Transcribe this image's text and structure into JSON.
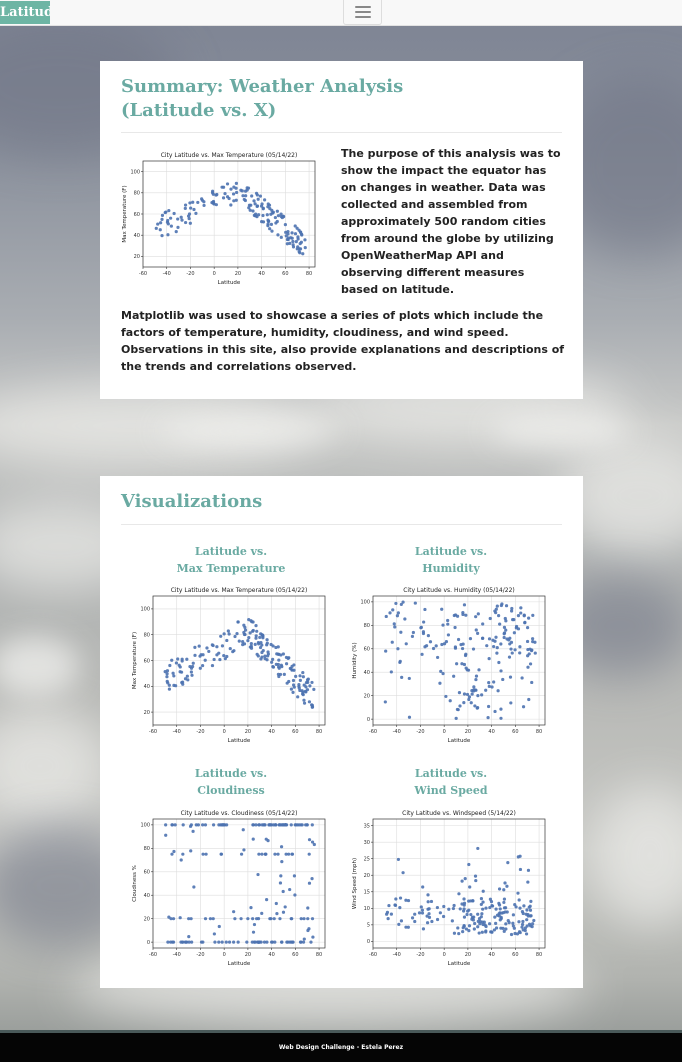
{
  "nav": {
    "brand": "Latitude",
    "menu_icon": "hamburger-icon"
  },
  "summary": {
    "title_line1": "Summary: Weather Analysis",
    "title_line2": "(Latitude vs. X)",
    "para1": "The purpose of this analysis was to show the impact the equator has on changes in weather. Data was collected and assembled from approximately 500 random cities from around the globe by utilizing OpenWeatherMap API and observing different measures based on latitude.",
    "para2": "Matplotlib was used to showcase a series of plots which include the factors of temperature, humidity, cloudiness, and wind speed. Observations in this site, also provide explanations and descriptions of the trends and correlations observed."
  },
  "visualizations": {
    "title": "Visualizations",
    "items": [
      {
        "line1": "Latitude vs.",
        "line2": "Max Temperature"
      },
      {
        "line1": "Latitude vs.",
        "line2": "Humidity"
      },
      {
        "line1": "Latitude vs.",
        "line2": "Cloudiness"
      },
      {
        "line1": "Latitude vs.",
        "line2": "Wind Speed"
      }
    ]
  },
  "footer": {
    "text": "Web Design Challenge - Estela Perez"
  },
  "colors": {
    "accent": "#6aaaa2",
    "brand": "#6db5a4",
    "marker": "#4c72b0"
  },
  "chart_data": [
    {
      "id": "summary-temp",
      "type": "scatter",
      "title": "City Latitude vs. Max Temperature (05/14/22)",
      "xlabel": "Latitude",
      "ylabel": "Max Temperature (F)",
      "xlim": [
        -60,
        85
      ],
      "ylim": [
        10,
        110
      ],
      "xticks": [
        -60,
        -40,
        -20,
        0,
        20,
        40,
        60,
        80
      ],
      "yticks": [
        20,
        40,
        60,
        80,
        100
      ],
      "grid": true,
      "n": 170,
      "pattern": "temp",
      "seed": 11
    },
    {
      "id": "temp",
      "type": "scatter",
      "title": "City Latitude vs. Max Temperature (05/14/22)",
      "xlabel": "Latitude",
      "ylabel": "Max Temperature (F)",
      "xlim": [
        -60,
        85
      ],
      "ylim": [
        10,
        110
      ],
      "xticks": [
        -60,
        -40,
        -20,
        0,
        20,
        40,
        60,
        80
      ],
      "yticks": [
        20,
        40,
        60,
        80,
        100
      ],
      "grid": true,
      "n": 200,
      "pattern": "temp",
      "seed": 7
    },
    {
      "id": "humidity",
      "type": "scatter",
      "title": "City Latitude vs. Humidity (05/14/22)",
      "xlabel": "Latitude",
      "ylabel": "Humidity (%)",
      "xlim": [
        -60,
        85
      ],
      "ylim": [
        -5,
        105
      ],
      "xticks": [
        -60,
        -40,
        -20,
        0,
        20,
        40,
        60,
        80
      ],
      "yticks": [
        0,
        20,
        40,
        60,
        80,
        100
      ],
      "grid": true,
      "n": 200,
      "pattern": "humidity",
      "seed": 3
    },
    {
      "id": "cloudiness",
      "type": "scatter",
      "title": "City Latitude vs. Cloudiness (05/14/22)",
      "xlabel": "Latitude",
      "ylabel": "Cloudiness %",
      "xlim": [
        -60,
        85
      ],
      "ylim": [
        -5,
        105
      ],
      "xticks": [
        -60,
        -40,
        -20,
        0,
        20,
        40,
        60,
        80
      ],
      "yticks": [
        0,
        20,
        40,
        60,
        80,
        100
      ],
      "grid": true,
      "n": 200,
      "pattern": "cloud",
      "seed": 19
    },
    {
      "id": "wind",
      "type": "scatter",
      "title": "City Latitude vs. Windspeed (5/14/22)",
      "xlabel": "Latitude",
      "ylabel": "Wind Speed (mph)",
      "xlim": [
        -60,
        85
      ],
      "ylim": [
        -2,
        37
      ],
      "xticks": [
        -60,
        -40,
        -20,
        0,
        20,
        40,
        60,
        80
      ],
      "yticks": [
        0,
        5,
        10,
        15,
        20,
        25,
        30,
        35
      ],
      "grid": true,
      "n": 200,
      "pattern": "wind",
      "seed": 29
    }
  ]
}
